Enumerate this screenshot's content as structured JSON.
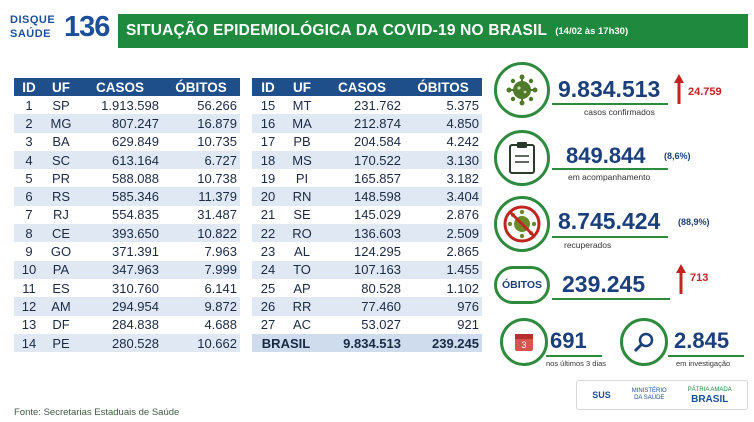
{
  "logo": {
    "line1": "DISQUE",
    "line2": "SAÚDE",
    "number": "136"
  },
  "banner": {
    "title": "SITUAÇÃO EPIDEMIOLÓGICA DA COVID-19 NO BRASIL",
    "date": "(14/02 às 17h30)"
  },
  "table": {
    "headers": [
      "ID",
      "UF",
      "CASOS",
      "ÓBITOS"
    ],
    "left": [
      [
        "1",
        "SP",
        "1.913.598",
        "56.266"
      ],
      [
        "2",
        "MG",
        "807.247",
        "16.879"
      ],
      [
        "3",
        "BA",
        "629.849",
        "10.735"
      ],
      [
        "4",
        "SC",
        "613.164",
        "6.727"
      ],
      [
        "5",
        "PR",
        "588.088",
        "10.738"
      ],
      [
        "6",
        "RS",
        "585.346",
        "11.379"
      ],
      [
        "7",
        "RJ",
        "554.835",
        "31.487"
      ],
      [
        "8",
        "CE",
        "393.650",
        "10.822"
      ],
      [
        "9",
        "GO",
        "371.391",
        "7.963"
      ],
      [
        "10",
        "PA",
        "347.963",
        "7.999"
      ],
      [
        "11",
        "ES",
        "310.760",
        "6.141"
      ],
      [
        "12",
        "AM",
        "294.954",
        "9.872"
      ],
      [
        "13",
        "DF",
        "284.838",
        "4.688"
      ],
      [
        "14",
        "PE",
        "280.528",
        "10.662"
      ]
    ],
    "right": [
      [
        "15",
        "MT",
        "231.762",
        "5.375"
      ],
      [
        "16",
        "MA",
        "212.874",
        "4.850"
      ],
      [
        "17",
        "PB",
        "204.584",
        "4.242"
      ],
      [
        "18",
        "MS",
        "170.522",
        "3.130"
      ],
      [
        "19",
        "PI",
        "165.857",
        "3.182"
      ],
      [
        "20",
        "RN",
        "148.598",
        "3.404"
      ],
      [
        "21",
        "SE",
        "145.029",
        "2.876"
      ],
      [
        "22",
        "RO",
        "136.603",
        "2.509"
      ],
      [
        "23",
        "AL",
        "124.295",
        "2.865"
      ],
      [
        "24",
        "TO",
        "107.163",
        "1.455"
      ],
      [
        "25",
        "AP",
        "80.528",
        "1.102"
      ],
      [
        "26",
        "RR",
        "77.460",
        "976"
      ],
      [
        "27",
        "AC",
        "53.027",
        "921"
      ]
    ],
    "total": {
      "label": "BRASIL",
      "casos": "9.834.513",
      "obitos": "239.245"
    }
  },
  "stats": {
    "confirmados": {
      "value": "9.834.513",
      "delta": "24.759",
      "label": "casos confirmados"
    },
    "acompanhamento": {
      "value": "849.844",
      "pct": "(8,6%)",
      "label": "em acompanhamento"
    },
    "recuperados": {
      "value": "8.745.424",
      "pct": "(88,9%)",
      "label": "recuperados"
    },
    "obitos": {
      "pill": "ÓBITOS",
      "value": "239.245",
      "delta": "713"
    },
    "ultimos": {
      "badge": "3",
      "value": "691",
      "label": "nos últimos 3 dias"
    },
    "investigacao": {
      "value": "2.845",
      "label": "em investigação"
    }
  },
  "footer": {
    "fonte": "Fonte: Secretarias Estaduais de Saúde",
    "sus": "SUS",
    "ministerio": "MINISTÉRIO DA SAÚDE",
    "patria": "PÁTRIA AMADA",
    "brasil": "BRASIL"
  },
  "colors": {
    "green": "#1f8a3e",
    "blue": "#1f4f8b",
    "red": "#c0251f"
  }
}
